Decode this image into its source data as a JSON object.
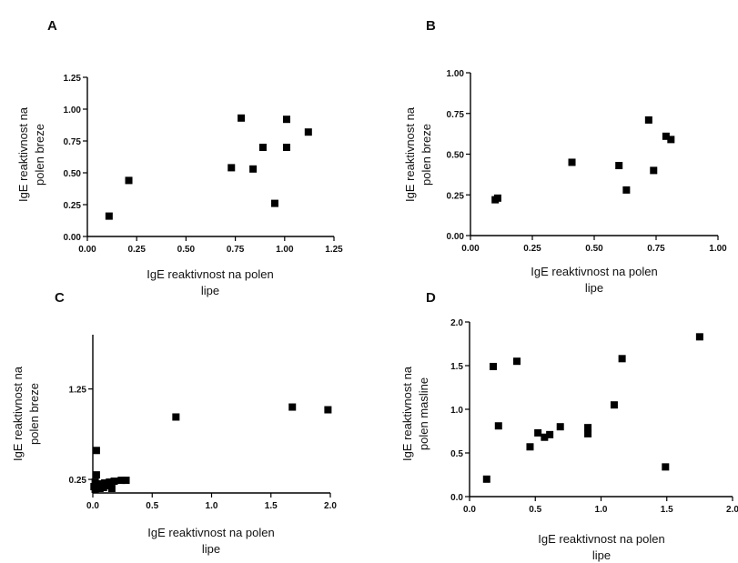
{
  "chart_data": [
    {
      "type": "scatter",
      "panel_label": "A",
      "xlabel": [
        "IgE reaktivnost na polen",
        "lipe"
      ],
      "ylabel": [
        "IgE reaktivnost na",
        "polen breze"
      ],
      "xlim": [
        0,
        1.25
      ],
      "ylim": [
        0,
        1.25
      ],
      "xticks": [
        "0.00",
        "0.25",
        "0.50",
        "0.75",
        "1.00",
        "1.25"
      ],
      "yticks": [
        "0.00",
        "0.25",
        "0.50",
        "0.75",
        "1.00",
        "1.25"
      ],
      "points": [
        {
          "x": 0.11,
          "y": 0.16
        },
        {
          "x": 0.21,
          "y": 0.44
        },
        {
          "x": 0.73,
          "y": 0.54
        },
        {
          "x": 0.78,
          "y": 0.93
        },
        {
          "x": 0.84,
          "y": 0.53
        },
        {
          "x": 0.89,
          "y": 0.7
        },
        {
          "x": 0.95,
          "y": 0.26
        },
        {
          "x": 1.01,
          "y": 0.92
        },
        {
          "x": 1.01,
          "y": 0.7
        },
        {
          "x": 1.12,
          "y": 0.82
        }
      ]
    },
    {
      "type": "scatter",
      "panel_label": "B",
      "xlabel": [
        "IgE reaktivnost na polen",
        "lipe"
      ],
      "ylabel": [
        "IgE reaktivnost na",
        "polen breze"
      ],
      "xlim": [
        0,
        1.0
      ],
      "ylim": [
        0,
        1.0
      ],
      "xticks": [
        "0.00",
        "0.25",
        "0.50",
        "0.75",
        "1.00"
      ],
      "yticks": [
        "0.00",
        "0.25",
        "0.50",
        "0.75",
        "1.00"
      ],
      "points": [
        {
          "x": 0.1,
          "y": 0.22
        },
        {
          "x": 0.11,
          "y": 0.23
        },
        {
          "x": 0.41,
          "y": 0.45
        },
        {
          "x": 0.6,
          "y": 0.43
        },
        {
          "x": 0.63,
          "y": 0.28
        },
        {
          "x": 0.72,
          "y": 0.71
        },
        {
          "x": 0.74,
          "y": 0.4
        },
        {
          "x": 0.79,
          "y": 0.61
        },
        {
          "x": 0.81,
          "y": 0.59
        }
      ]
    },
    {
      "type": "scatter",
      "panel_label": "C",
      "xlabel": [
        "IgE reaktivnost na polen",
        "lipe"
      ],
      "ylabel": [
        "IgE reaktivnost na",
        "polen breze"
      ],
      "xlim": [
        0,
        2.0
      ],
      "ylim": [
        0.1,
        1.85
      ],
      "xticks": [
        "0.0",
        "0.5",
        "1.0",
        "1.5",
        "2.0"
      ],
      "xtick_values": [
        0,
        0.5,
        1.0,
        1.5,
        2.0
      ],
      "yticks": [
        "0.25",
        "1.25"
      ],
      "ytick_values": [
        0.25,
        1.25
      ],
      "points": [
        {
          "x": 0.01,
          "y": 0.17
        },
        {
          "x": 0.02,
          "y": 0.22
        },
        {
          "x": 0.02,
          "y": 0.14
        },
        {
          "x": 0.03,
          "y": 0.3
        },
        {
          "x": 0.03,
          "y": 0.57
        },
        {
          "x": 0.04,
          "y": 0.18
        },
        {
          "x": 0.05,
          "y": 0.2
        },
        {
          "x": 0.06,
          "y": 0.15
        },
        {
          "x": 0.08,
          "y": 0.19
        },
        {
          "x": 0.09,
          "y": 0.16
        },
        {
          "x": 0.1,
          "y": 0.21
        },
        {
          "x": 0.12,
          "y": 0.18
        },
        {
          "x": 0.14,
          "y": 0.22
        },
        {
          "x": 0.16,
          "y": 0.15
        },
        {
          "x": 0.18,
          "y": 0.23
        },
        {
          "x": 0.24,
          "y": 0.24
        },
        {
          "x": 0.28,
          "y": 0.24
        },
        {
          "x": 0.7,
          "y": 0.94
        },
        {
          "x": 1.68,
          "y": 1.05
        },
        {
          "x": 1.98,
          "y": 1.02
        }
      ]
    },
    {
      "type": "scatter",
      "panel_label": "D",
      "xlabel": [
        "IgE reaktivnost na polen",
        "lipe"
      ],
      "ylabel": [
        "IgE reaktivnost na",
        "polen masline"
      ],
      "xlim": [
        0,
        2.0
      ],
      "ylim": [
        0,
        2.0
      ],
      "xticks": [
        "0.0",
        "0.5",
        "1.0",
        "1.5",
        "2.0"
      ],
      "yticks": [
        "0.0",
        "0.5",
        "1.0",
        "1.5",
        "2.0"
      ],
      "points": [
        {
          "x": 0.13,
          "y": 0.2
        },
        {
          "x": 0.18,
          "y": 1.49
        },
        {
          "x": 0.22,
          "y": 0.81
        },
        {
          "x": 0.36,
          "y": 1.55
        },
        {
          "x": 0.46,
          "y": 0.57
        },
        {
          "x": 0.52,
          "y": 0.73
        },
        {
          "x": 0.57,
          "y": 0.68
        },
        {
          "x": 0.61,
          "y": 0.71
        },
        {
          "x": 0.69,
          "y": 0.8
        },
        {
          "x": 0.9,
          "y": 0.79
        },
        {
          "x": 0.9,
          "y": 0.72
        },
        {
          "x": 1.1,
          "y": 1.05
        },
        {
          "x": 1.16,
          "y": 1.58
        },
        {
          "x": 1.49,
          "y": 0.34
        },
        {
          "x": 1.75,
          "y": 1.83
        }
      ]
    }
  ]
}
